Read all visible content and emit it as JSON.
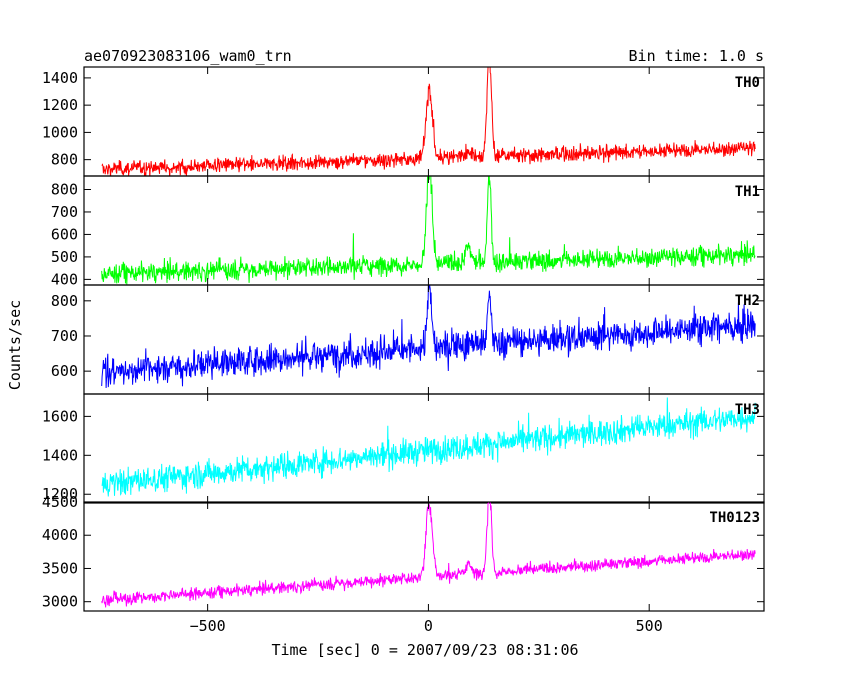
{
  "chart_data": {
    "type": "line",
    "title": "ae070923083106_wam0_trn",
    "bin_time": "Bin time: 1.0 s",
    "xlabel": "Time [sec] 0 = 2007/09/23 08:31:06",
    "ylabel": "Counts/sec",
    "xlim": [
      -780,
      760
    ],
    "x_ticks": [
      -500,
      0,
      500
    ],
    "x_tick_labels": [
      "−500",
      "0",
      "500"
    ],
    "x_data_range": [
      -740,
      740
    ],
    "grid": false,
    "panels": [
      {
        "name": "TH0",
        "color": "#ff0000",
        "ylim": [
          680,
          1480
        ],
        "y_ticks": [
          800,
          1000,
          1200,
          1400
        ],
        "baseline_start": 730,
        "baseline_end": 885,
        "noise": 28,
        "spikes": 3,
        "peaks": [
          {
            "t": 2,
            "height": 520,
            "width": 7
          },
          {
            "t": 138,
            "height": 760,
            "width": 5
          },
          {
            "t": 90,
            "height": 40,
            "width": 15
          }
        ]
      },
      {
        "name": "TH1",
        "color": "#00ff00",
        "ylim": [
          375,
          860
        ],
        "y_ticks": [
          400,
          500,
          600,
          700,
          800
        ],
        "baseline_start": 425,
        "baseline_end": 510,
        "noise": 22,
        "spikes": 6,
        "peaks": [
          {
            "t": 2,
            "height": 440,
            "width": 6
          },
          {
            "t": 138,
            "height": 420,
            "width": 4
          },
          {
            "t": 90,
            "height": 80,
            "width": 6
          }
        ]
      },
      {
        "name": "TH2",
        "color": "#0000ff",
        "ylim": [
          535,
          845
        ],
        "y_ticks": [
          600,
          700,
          800
        ],
        "baseline_start": 600,
        "baseline_end": 730,
        "noise": 22,
        "spikes": 3,
        "peaks": [
          {
            "t": 2,
            "height": 170,
            "width": 5
          },
          {
            "t": 138,
            "height": 140,
            "width": 4
          }
        ]
      },
      {
        "name": "TH3",
        "color": "#00ffff",
        "ylim": [
          1155,
          1715
        ],
        "y_ticks": [
          1200,
          1400,
          1600
        ],
        "baseline_start": 1250,
        "baseline_end": 1600,
        "noise": 35,
        "spikes": 3,
        "peaks": []
      },
      {
        "name": "TH0123",
        "color": "#ff00ff",
        "ylim": [
          2860,
          4500
        ],
        "y_ticks": [
          3000,
          3500,
          4000,
          4500
        ],
        "baseline_start": 3020,
        "baseline_end": 3720,
        "noise": 45,
        "spikes": 3,
        "peaks": [
          {
            "t": 2,
            "height": 1150,
            "width": 7
          },
          {
            "t": 138,
            "height": 1250,
            "width": 5
          },
          {
            "t": 90,
            "height": 180,
            "width": 6
          }
        ]
      }
    ]
  }
}
